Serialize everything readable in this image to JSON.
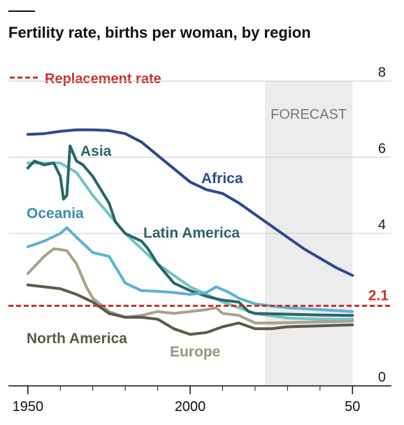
{
  "chart_data": {
    "type": "line",
    "title": "Fertility rate, births per woman, by region",
    "xlim": [
      1944,
      2062
    ],
    "xticks": [
      1950,
      2000,
      {
        "value": 2050,
        "label": "50"
      }
    ],
    "xminor": [
      1960,
      1970,
      1980,
      1990,
      2010,
      2020,
      2030,
      2040
    ],
    "ylim": [
      0,
      8
    ],
    "yticks": [
      0,
      4,
      6,
      8
    ],
    "grid": true,
    "forecast": {
      "start": 2023,
      "end": 2050,
      "label": "FORECAST",
      "color": "#ececec"
    },
    "reference_line": {
      "name": "Replacement rate",
      "value": 2.1,
      "color": "#c8352b"
    },
    "series": [
      {
        "name": "Africa",
        "color": "#2e4a8e",
        "x": [
          1950,
          1955,
          1960,
          1965,
          1970,
          1975,
          1980,
          1985,
          1990,
          1995,
          2000,
          2005,
          2010,
          2015,
          2020,
          2025,
          2030,
          2035,
          2040,
          2045,
          2050
        ],
        "values": [
          6.6,
          6.62,
          6.68,
          6.72,
          6.72,
          6.7,
          6.62,
          6.4,
          6.05,
          5.7,
          5.35,
          5.15,
          5.05,
          4.8,
          4.5,
          4.2,
          3.9,
          3.6,
          3.35,
          3.1,
          2.9
        ]
      },
      {
        "name": "Latin America",
        "color": "#72c6c2",
        "x": [
          1950,
          1955,
          1960,
          1965,
          1970,
          1975,
          1980,
          1985,
          1990,
          1995,
          2000,
          2005,
          2010,
          2015,
          2020,
          2030,
          2040,
          2050
        ],
        "values": [
          5.85,
          5.85,
          5.85,
          5.6,
          5.0,
          4.5,
          4.0,
          3.6,
          3.2,
          2.9,
          2.6,
          2.4,
          2.2,
          2.05,
          1.9,
          1.78,
          1.75,
          1.75
        ]
      },
      {
        "name": "Asia",
        "color": "#2a666a",
        "x": [
          1950,
          1952,
          1955,
          1958,
          1960,
          1961,
          1962,
          1963,
          1965,
          1967,
          1970,
          1975,
          1977,
          1980,
          1985,
          1987,
          1990,
          1995,
          2000,
          2005,
          2010,
          2015,
          2018,
          2020,
          2030,
          2040,
          2050
        ],
        "values": [
          5.72,
          5.9,
          5.8,
          5.85,
          5.5,
          4.9,
          5.0,
          6.3,
          5.9,
          5.8,
          5.5,
          4.8,
          4.3,
          4.0,
          3.8,
          3.6,
          3.2,
          2.7,
          2.5,
          2.35,
          2.25,
          2.2,
          1.95,
          1.9,
          1.88,
          1.86,
          1.85
        ]
      },
      {
        "name": "Oceania",
        "color": "#5bb3d6",
        "x": [
          1950,
          1955,
          1960,
          1962,
          1965,
          1970,
          1975,
          1980,
          1985,
          1990,
          1995,
          2000,
          2005,
          2008,
          2012,
          2015,
          2020,
          2030,
          2040,
          2050
        ],
        "values": [
          3.65,
          3.8,
          4.0,
          4.15,
          3.9,
          3.5,
          3.4,
          2.7,
          2.5,
          2.48,
          2.45,
          2.4,
          2.45,
          2.6,
          2.45,
          2.3,
          2.15,
          2.05,
          2.0,
          1.95
        ]
      },
      {
        "name": "Europe",
        "color": "#a8a28c",
        "x": [
          1950,
          1955,
          1958,
          1962,
          1965,
          1968,
          1970,
          1975,
          1980,
          1985,
          1990,
          1995,
          2000,
          2005,
          2008,
          2010,
          2015,
          2020,
          2025,
          2050
        ],
        "values": [
          2.95,
          3.4,
          3.6,
          3.55,
          3.2,
          2.6,
          2.3,
          1.95,
          1.8,
          1.85,
          1.95,
          1.9,
          1.95,
          2.0,
          2.05,
          1.9,
          1.85,
          1.65,
          1.65,
          1.7
        ]
      },
      {
        "name": "North America",
        "color": "#5d5a48",
        "x": [
          1950,
          1960,
          1965,
          1970,
          1975,
          1980,
          1985,
          1990,
          1995,
          2000,
          2005,
          2010,
          2015,
          2020,
          2025,
          2030,
          2050
        ],
        "values": [
          2.65,
          2.55,
          2.4,
          2.2,
          1.9,
          1.8,
          1.8,
          1.75,
          1.5,
          1.35,
          1.4,
          1.55,
          1.65,
          1.5,
          1.5,
          1.55,
          1.6
        ]
      }
    ]
  }
}
